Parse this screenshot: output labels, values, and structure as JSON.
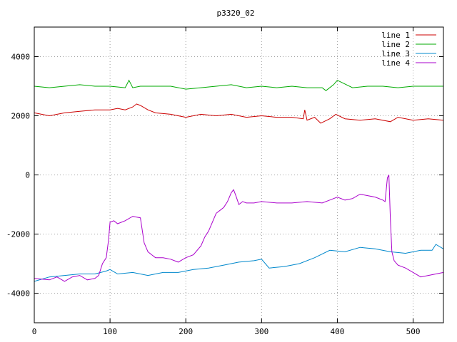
{
  "chart_data": {
    "type": "line",
    "title": "p3320_02",
    "xlabel": "",
    "ylabel": "",
    "xlim": [
      0,
      540
    ],
    "ylim": [
      -5000,
      5000
    ],
    "xticks": [
      0,
      100,
      200,
      300,
      400,
      500
    ],
    "yticks": [
      -4000,
      -2000,
      0,
      2000,
      4000
    ],
    "grid": true,
    "legend_position": "top-right",
    "series": [
      {
        "name": "line 1",
        "color": "#cc0000",
        "x": [
          0,
          20,
          40,
          60,
          80,
          100,
          110,
          120,
          130,
          135,
          140,
          150,
          160,
          180,
          200,
          220,
          240,
          260,
          280,
          300,
          320,
          340,
          355,
          357,
          360,
          370,
          378,
          390,
          398,
          410,
          430,
          450,
          470,
          480,
          500,
          520,
          540
        ],
        "y": [
          2100,
          2000,
          2100,
          2150,
          2200,
          2200,
          2250,
          2200,
          2300,
          2400,
          2350,
          2200,
          2100,
          2050,
          1950,
          2050,
          2000,
          2050,
          1950,
          2000,
          1950,
          1950,
          1900,
          2200,
          1850,
          1950,
          1750,
          1900,
          2050,
          1900,
          1850,
          1900,
          1800,
          1950,
          1850,
          1900,
          1850
        ]
      },
      {
        "name": "line 2",
        "color": "#00aa00",
        "x": [
          0,
          20,
          40,
          60,
          80,
          100,
          120,
          122,
          125,
          130,
          140,
          160,
          180,
          200,
          220,
          240,
          260,
          280,
          300,
          320,
          340,
          360,
          380,
          385,
          395,
          400,
          420,
          440,
          460,
          480,
          500,
          520,
          540
        ],
        "y": [
          3000,
          2950,
          3000,
          3050,
          3000,
          3000,
          2950,
          3050,
          3200,
          2950,
          3000,
          3000,
          3000,
          2900,
          2950,
          3000,
          3050,
          2950,
          3000,
          2950,
          3000,
          2950,
          2950,
          2850,
          3050,
          3200,
          2950,
          3000,
          3000,
          2950,
          3000,
          3000,
          3000
        ]
      },
      {
        "name": "line 3",
        "color": "#0088cc",
        "x": [
          0,
          20,
          40,
          60,
          80,
          95,
          100,
          110,
          130,
          150,
          170,
          190,
          210,
          230,
          250,
          270,
          290,
          300,
          310,
          330,
          350,
          370,
          390,
          410,
          430,
          450,
          470,
          490,
          510,
          525,
          530,
          540
        ],
        "y": [
          -3600,
          -3450,
          -3400,
          -3350,
          -3350,
          -3250,
          -3200,
          -3350,
          -3300,
          -3400,
          -3300,
          -3300,
          -3200,
          -3150,
          -3050,
          -2950,
          -2900,
          -2850,
          -3150,
          -3100,
          -3000,
          -2800,
          -2550,
          -2600,
          -2450,
          -2500,
          -2600,
          -2650,
          -2550,
          -2550,
          -2350,
          -2500
        ]
      },
      {
        "name": "line 4",
        "color": "#aa00cc",
        "x": [
          0,
          20,
          30,
          40,
          50,
          60,
          70,
          80,
          85,
          90,
          95,
          98,
          100,
          105,
          110,
          120,
          130,
          140,
          145,
          150,
          155,
          160,
          170,
          180,
          190,
          200,
          210,
          220,
          225,
          230,
          235,
          240,
          245,
          250,
          255,
          260,
          263,
          266,
          270,
          275,
          280,
          290,
          300,
          320,
          340,
          360,
          380,
          390,
          400,
          410,
          420,
          430,
          440,
          450,
          460,
          463,
          466,
          468,
          470,
          472,
          475,
          480,
          490,
          500,
          510,
          520,
          530,
          540
        ],
        "y": [
          -3500,
          -3550,
          -3450,
          -3600,
          -3450,
          -3400,
          -3550,
          -3500,
          -3400,
          -3000,
          -2800,
          -2200,
          -1600,
          -1550,
          -1650,
          -1550,
          -1400,
          -1450,
          -2300,
          -2600,
          -2700,
          -2800,
          -2800,
          -2850,
          -2950,
          -2800,
          -2700,
          -2400,
          -2100,
          -1900,
          -1600,
          -1300,
          -1200,
          -1100,
          -900,
          -600,
          -500,
          -700,
          -1000,
          -900,
          -950,
          -950,
          -900,
          -950,
          -950,
          -900,
          -950,
          -850,
          -750,
          -850,
          -800,
          -650,
          -700,
          -750,
          -850,
          -900,
          -100,
          0,
          -1500,
          -2600,
          -2900,
          -3050,
          -3150,
          -3300,
          -3450,
          -3400,
          -3350,
          -3300
        ]
      }
    ]
  }
}
